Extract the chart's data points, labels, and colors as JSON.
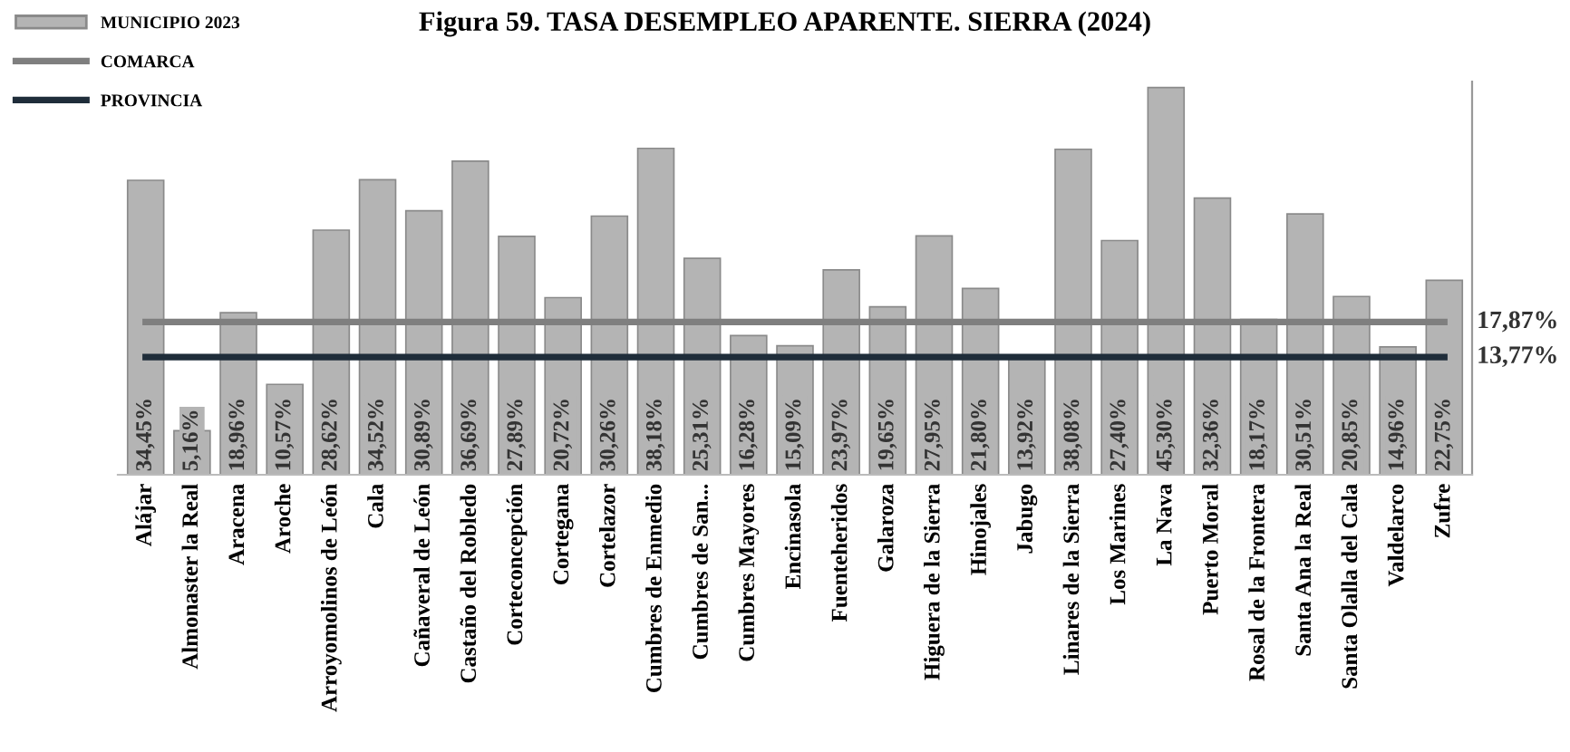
{
  "chart_data": {
    "type": "bar",
    "title": "Figura 59. TASA DESEMPLEO APARENTE. SIERRA (2024)",
    "categories": [
      "Alájar",
      "Almonaster la Real",
      "Aracena",
      "Aroche",
      "Arroyomolinos de León",
      "Cala",
      "Cañaveral de León",
      "Castaño del Robledo",
      "Corteconcepción",
      "Cortegana",
      "Cortelazor",
      "Cumbres de Enmedio",
      "Cumbres de San...",
      "Cumbres Mayores",
      "Encinasola",
      "Fuenteheridos",
      "Galaroza",
      "Higuera de la Sierra",
      "Hinojales",
      "Jabugo",
      "Linares de la Sierra",
      "Los Marines",
      "La Nava",
      "Puerto Moral",
      "Rosal de la Frontera",
      "Santa Ana la Real",
      "Santa Olalla del Cala",
      "Valdelarco",
      "Zufre"
    ],
    "series": [
      {
        "name": "MUNICIPIO 2023",
        "color": "#b4b4b4",
        "values": [
          34.45,
          5.16,
          18.96,
          10.57,
          28.62,
          34.52,
          30.89,
          36.69,
          27.89,
          20.72,
          30.26,
          38.18,
          25.31,
          16.28,
          15.09,
          23.97,
          19.65,
          27.95,
          21.8,
          13.92,
          38.08,
          27.4,
          45.3,
          32.36,
          18.17,
          30.51,
          20.85,
          14.96,
          22.75
        ],
        "value_labels": [
          "34,45%",
          "5,16%",
          "18,96%",
          "10,57%",
          "28,62%",
          "34,52%",
          "30,89%",
          "36,69%",
          "27,89%",
          "20,72%",
          "30,26%",
          "38,18%",
          "25,31%",
          "16,28%",
          "15,09%",
          "23,97%",
          "19,65%",
          "27,95%",
          "21,80%",
          "13,92%",
          "38,08%",
          "27,40%",
          "45,30%",
          "32,36%",
          "18,17%",
          "30,51%",
          "20,85%",
          "14,96%",
          "22,75%"
        ]
      },
      {
        "name": "COMARCA",
        "type": "line",
        "color": "#7f7f7f",
        "values": [
          17.87,
          17.87,
          17.87,
          17.87,
          17.87,
          17.87,
          17.87,
          17.87,
          17.87,
          17.87,
          17.87,
          17.87,
          17.87,
          17.87,
          17.87,
          17.87,
          17.87,
          17.87,
          17.87,
          17.87,
          17.87,
          17.87,
          17.87,
          17.87,
          17.87,
          17.87,
          17.87,
          17.87,
          17.87
        ],
        "value_labels": [
          null,
          null,
          null,
          null,
          null,
          null,
          null,
          null,
          null,
          null,
          null,
          null,
          null,
          null,
          null,
          null,
          null,
          null,
          null,
          null,
          null,
          null,
          null,
          null,
          null,
          null,
          null,
          null,
          "17,87%"
        ]
      },
      {
        "name": "PROVINCIA",
        "type": "line",
        "color": "#1f2d3a",
        "values": [
          13.77,
          13.77,
          13.77,
          13.77,
          13.77,
          13.77,
          13.77,
          13.77,
          13.77,
          13.77,
          13.77,
          13.77,
          13.77,
          13.77,
          13.77,
          13.77,
          13.77,
          13.77,
          13.77,
          13.77,
          13.77,
          13.77,
          13.77,
          13.77,
          13.77,
          13.77,
          13.77,
          13.77,
          13.77
        ],
        "value_labels": [
          null,
          null,
          null,
          null,
          null,
          null,
          null,
          null,
          null,
          null,
          null,
          null,
          null,
          null,
          null,
          null,
          null,
          null,
          null,
          null,
          null,
          null,
          null,
          null,
          null,
          null,
          null,
          null,
          "13,77%"
        ]
      }
    ],
    "ylim": [
      0,
      46
    ],
    "tick_labels": "x",
    "grid": false,
    "legend": "top left",
    "line_style": "solid",
    "marker": "none"
  }
}
